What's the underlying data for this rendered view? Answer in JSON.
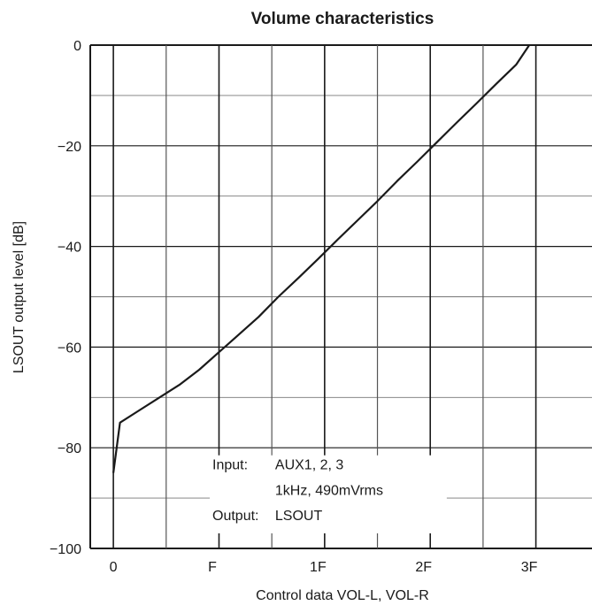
{
  "chart_data": {
    "type": "line",
    "title": "Volume characteristics",
    "xlabel": "Control data VOL-L, VOL-R",
    "ylabel": "LSOUT output level [dB]",
    "x_tick_labels": [
      "0",
      "F",
      "1F",
      "2F",
      "3F"
    ],
    "x_tick_positions": [
      0,
      15,
      31,
      47,
      63
    ],
    "xlim": [
      -3.5,
      72.5
    ],
    "ylim": [
      -100,
      0
    ],
    "y_ticks": [
      0,
      -20,
      -40,
      -60,
      -80,
      -100
    ],
    "y_tick_labels": [
      "0",
      "−20",
      "−40",
      "−60",
      "−80",
      "−100"
    ],
    "grid": true,
    "series": [
      {
        "x": [
          0,
          1,
          4,
          7,
          10,
          13,
          16,
          19,
          22,
          25,
          28,
          31,
          34,
          37,
          40,
          43,
          46,
          49,
          52,
          55,
          58,
          61,
          63
        ],
        "values": [
          -85,
          -75,
          -72.5,
          -70,
          -67.5,
          -64.5,
          -61,
          -57.5,
          -54,
          -50,
          -46.3,
          -42.5,
          -38.6,
          -34.8,
          -31,
          -27,
          -23.2,
          -19.3,
          -15.4,
          -11.6,
          -7.7,
          -3.9,
          0
        ]
      }
    ],
    "annotation": {
      "lines": [
        [
          "Input:",
          "AUX1, 2, 3"
        ],
        [
          "",
          "1kHz, 490mVrms"
        ],
        [
          "Output:",
          "LSOUT"
        ]
      ]
    }
  }
}
